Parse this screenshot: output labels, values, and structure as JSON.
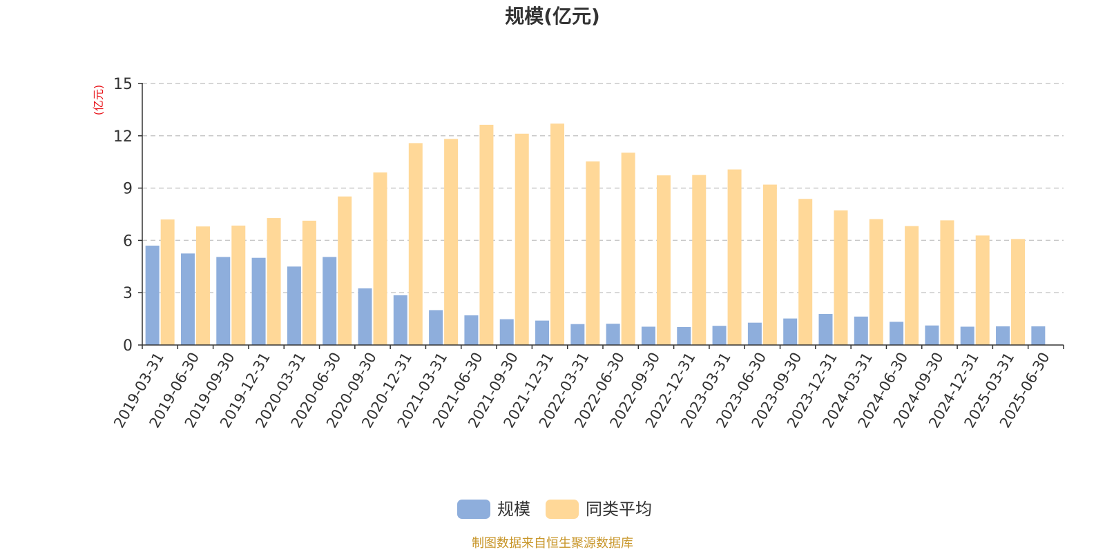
{
  "title": "规模(亿元)",
  "source_note": "制图数据来自恒生聚源数据库",
  "colors": {
    "series_0": "#8eaedc",
    "series_1": "#ffd898",
    "axis": "#333333",
    "grid": "#c8c8c8",
    "unit_label": "#e8141a",
    "title": "#333333",
    "source_note": "#c8962a"
  },
  "chart_data": {
    "type": "bar",
    "title": "规模(亿元)",
    "ylabel": "(亿元)",
    "xlabel": "",
    "ylim": [
      0,
      15
    ],
    "yticks": [
      0,
      3,
      6,
      9,
      12,
      15
    ],
    "grid": true,
    "legend_position": "bottom-center",
    "categories": [
      "2019-03-31",
      "2019-06-30",
      "2019-09-30",
      "2019-12-31",
      "2020-03-31",
      "2020-06-30",
      "2020-09-30",
      "2020-12-31",
      "2021-03-31",
      "2021-06-30",
      "2021-09-30",
      "2021-12-31",
      "2022-03-31",
      "2022-06-30",
      "2022-09-30",
      "2022-12-31",
      "2023-03-31",
      "2023-06-30",
      "2023-09-30",
      "2023-12-31",
      "2024-03-31",
      "2024-06-30",
      "2024-09-30",
      "2024-12-31",
      "2025-03-31",
      "2025-06-30"
    ],
    "series": [
      {
        "name": "规模",
        "values": [
          5.7,
          5.25,
          5.05,
          5.0,
          4.5,
          5.05,
          3.25,
          2.85,
          2.0,
          1.7,
          1.48,
          1.4,
          1.2,
          1.22,
          1.05,
          1.03,
          1.1,
          1.28,
          1.52,
          1.78,
          1.63,
          1.33,
          1.12,
          1.05,
          1.07,
          1.07
        ]
      },
      {
        "name": "同类平均",
        "values": [
          7.2,
          6.8,
          6.85,
          7.28,
          7.13,
          8.52,
          9.9,
          11.58,
          11.82,
          12.63,
          12.12,
          12.7,
          10.53,
          11.03,
          9.73,
          9.75,
          10.07,
          9.2,
          8.38,
          7.72,
          7.22,
          6.82,
          7.15,
          6.28,
          6.08,
          null
        ]
      }
    ]
  }
}
